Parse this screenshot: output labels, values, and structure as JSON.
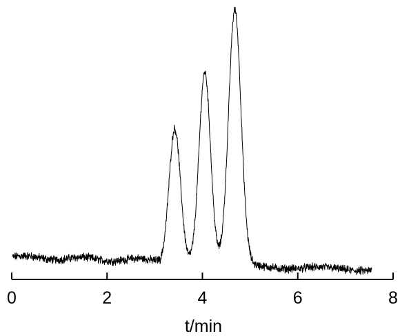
{
  "chart_data": {
    "type": "line",
    "xlabel": "t/min",
    "ylabel": "",
    "xlim": [
      0,
      8
    ],
    "ylim": [
      0,
      100
    ],
    "x_ticks": [
      "0",
      "2",
      "4",
      "6",
      "8"
    ],
    "grid": false,
    "baseline_level": 7,
    "noise_amplitude": 1.2,
    "series": [
      {
        "color": "#000000",
        "peaks": [
          {
            "t": 3.42,
            "height": 50,
            "width": 0.12
          },
          {
            "t": 4.05,
            "height": 71,
            "width": 0.12
          },
          {
            "t": 4.68,
            "height": 94,
            "width": 0.13
          }
        ],
        "x": [
          0.02,
          0.5,
          1.0,
          1.5,
          2.0,
          2.5,
          3.0,
          3.2,
          3.42,
          3.7,
          3.78,
          4.05,
          4.33,
          4.42,
          4.68,
          5.0,
          5.5,
          6.0,
          6.5,
          7.0,
          7.55
        ],
        "values": [
          8,
          7,
          6.5,
          6,
          6,
          6,
          7,
          7.5,
          57,
          5,
          4,
          78,
          6,
          5,
          101,
          5,
          4.5,
          4.2,
          3.8,
          3.8,
          5
        ]
      }
    ]
  }
}
